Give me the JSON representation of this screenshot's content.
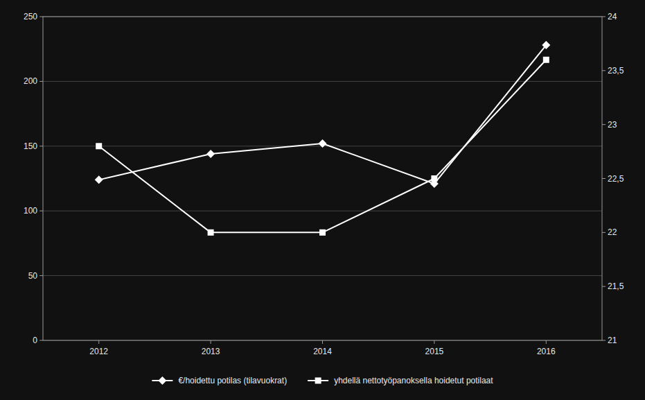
{
  "chart_data": {
    "type": "line",
    "x": [
      2012,
      2013,
      2014,
      2015,
      2016
    ],
    "xlim": [
      2011.5,
      2016.5
    ],
    "xticks": [
      2012,
      2013,
      2014,
      2015,
      2016
    ],
    "series": [
      {
        "name": "€/hoidettu potilas (tilavuokrat)",
        "color": "#ffffff",
        "marker": "diamond",
        "values": [
          124,
          144,
          152,
          121,
          228
        ]
      },
      {
        "name": "yhdellä nettotyöpanoksella hoidetut potilaat",
        "color": "#ffffff",
        "marker": "square",
        "axis": "y2",
        "values": [
          22.8,
          22.0,
          22.0,
          22.5,
          23.6
        ]
      }
    ],
    "ylim": [
      0,
      250
    ],
    "yticks": [
      0,
      50,
      100,
      150,
      200,
      250
    ],
    "y2lim": [
      21,
      24
    ],
    "y2ticks": [
      21,
      {
        "value": 21.5,
        "label": "21,5"
      },
      22,
      {
        "value": 22.5,
        "label": "22,5"
      },
      23,
      {
        "value": 23.5,
        "label": "23,5"
      },
      24
    ],
    "grid": true,
    "legend": "bottom"
  }
}
